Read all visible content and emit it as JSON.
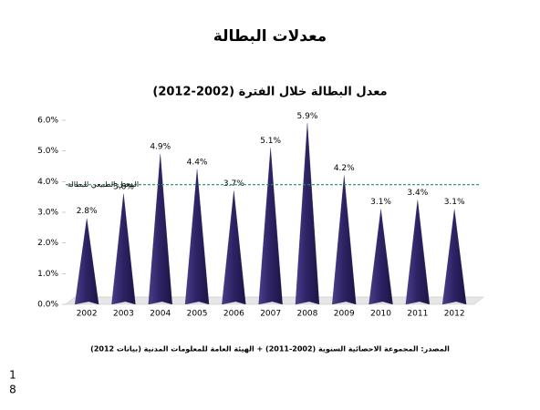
{
  "heading": "معدلات البطالة",
  "chart_data": {
    "type": "bar",
    "title": "معدل البطالة خلال الفترة (2002-2012)",
    "categories": [
      "2002",
      "2003",
      "2004",
      "2005",
      "2006",
      "2007",
      "2008",
      "2009",
      "2010",
      "2011",
      "2012"
    ],
    "values": [
      2.8,
      3.6,
      4.9,
      4.4,
      3.7,
      5.1,
      5.9,
      4.2,
      3.1,
      3.4,
      3.1
    ],
    "value_labels": [
      "2.8%",
      "3.6%",
      "4.9%",
      "4.4%",
      "3.7%",
      "5.1%",
      "5.9%",
      "4.2%",
      "3.1%",
      "3.4%",
      "3.1%"
    ],
    "color": "#2e2466",
    "ylim": [
      0,
      6
    ],
    "yticks": [
      {
        "value": 0,
        "label": "0.0%"
      },
      {
        "value": 1,
        "label": "1.0%"
      },
      {
        "value": 2,
        "label": "2.0%"
      },
      {
        "value": 3,
        "label": "3.0%"
      },
      {
        "value": 4,
        "label": "4.0%"
      },
      {
        "value": 5,
        "label": "5.0%"
      },
      {
        "value": 6,
        "label": "6.0%"
      }
    ],
    "reference_line": {
      "value": 3.9,
      "label": "المعدل الطبيعي للبطالة",
      "color": "#2e8b57"
    },
    "source": "(المصدر: المجموعة الاحصائية السنوية (2002-2011) + الهيئة العامة للمعلومات المدنية (بيانات 2012"
  },
  "page_number": [
    "1",
    "8"
  ]
}
